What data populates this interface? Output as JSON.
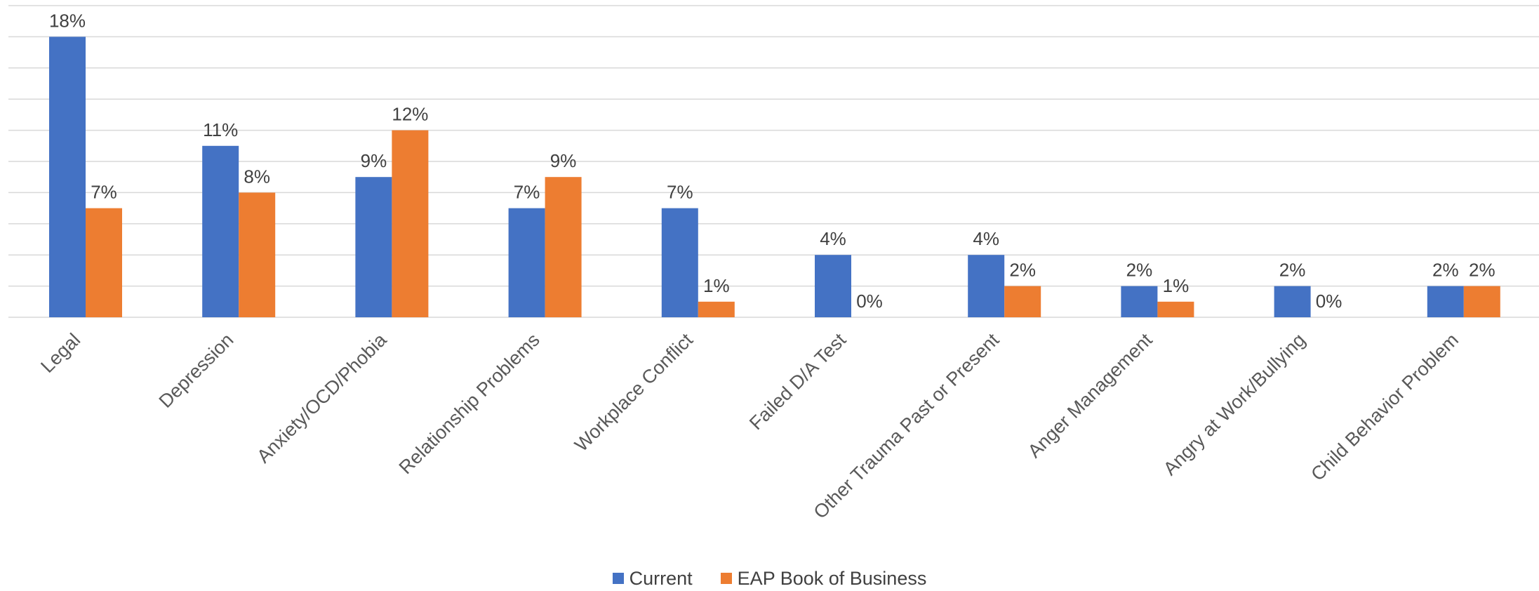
{
  "chart_data": {
    "type": "bar",
    "title": "",
    "xlabel": "",
    "ylabel": "",
    "ylim": [
      0,
      20
    ],
    "grid": true,
    "legend_position": "bottom",
    "categories": [
      "Legal",
      "Depression",
      "Anxiety/OCD/Phobia",
      "Relationship Problems",
      "Workplace Conflict",
      "Failed D/A Test",
      "Other Trauma Past or Present",
      "Anger Management",
      "Angry at Work/Bullying",
      "Child Behavior Problem"
    ],
    "series": [
      {
        "name": "Current",
        "color": "#4472C4",
        "values": [
          18,
          11,
          9,
          7,
          7,
          4,
          4,
          2,
          2,
          2
        ],
        "labels": [
          "18%",
          "11%",
          "9%",
          "7%",
          "7%",
          "4%",
          "4%",
          "2%",
          "2%",
          "2%"
        ]
      },
      {
        "name": "EAP Book of Business",
        "color": "#ED7D31",
        "values": [
          7,
          8,
          12,
          9,
          1,
          0,
          2,
          1,
          0,
          2
        ],
        "labels": [
          "7%",
          "8%",
          "12%",
          "9%",
          "1%",
          "0%",
          "2%",
          "1%",
          "0%",
          "2%"
        ]
      }
    ]
  }
}
